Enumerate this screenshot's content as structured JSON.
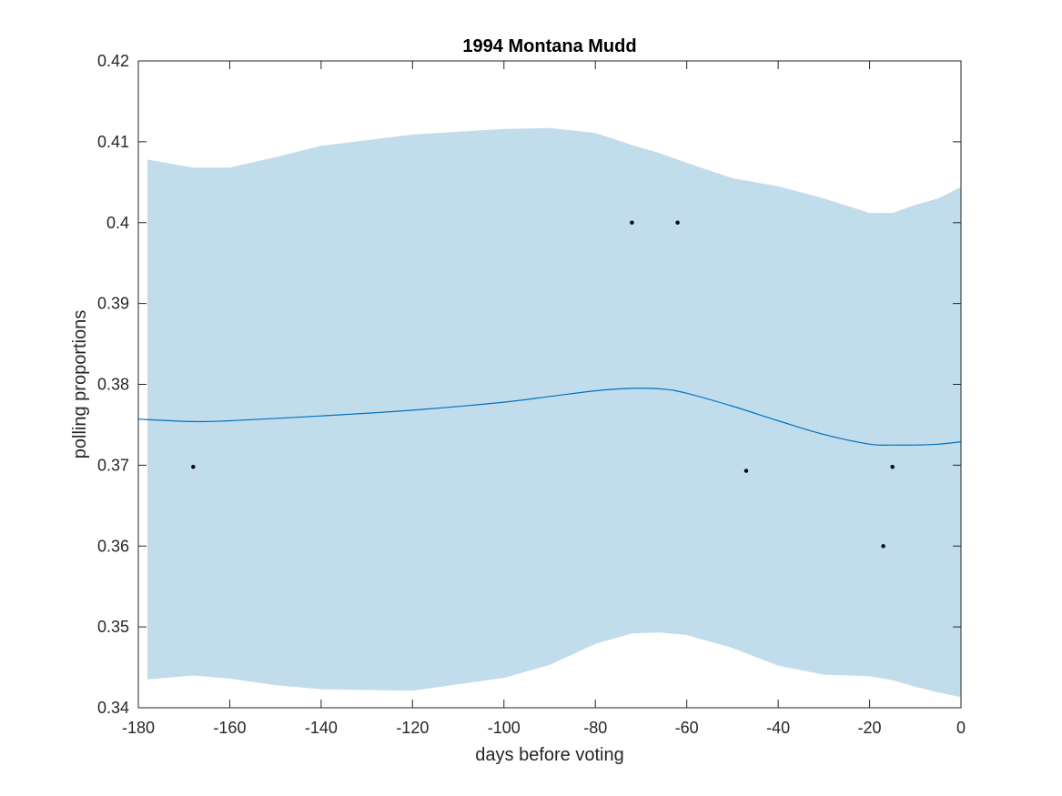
{
  "chart_data": {
    "type": "line",
    "title": "1994 Montana Mudd",
    "xlabel": "days before voting",
    "ylabel": "polling proportions",
    "xlim": [
      -180,
      0
    ],
    "ylim": [
      0.34,
      0.42
    ],
    "xticks": [
      -180,
      -160,
      -140,
      -120,
      -100,
      -80,
      -60,
      -40,
      -20,
      0
    ],
    "yticks": [
      0.34,
      0.35,
      0.36,
      0.37,
      0.38,
      0.39,
      0.4,
      0.41,
      0.42
    ],
    "xtick_labels": [
      "-180",
      "-160",
      "-140",
      "-120",
      "-100",
      "-80",
      "-60",
      "-40",
      "-20",
      "0"
    ],
    "ytick_labels": [
      "0.34",
      "0.35",
      "0.36",
      "0.37",
      "0.38",
      "0.39",
      "0.4",
      "0.41",
      "0.42"
    ],
    "grid": false,
    "colors": {
      "band": "#c1dceb",
      "line": "#0072bd",
      "points": "#000000",
      "axes": "#262626"
    },
    "band": {
      "x": [
        -178,
        -168,
        -160,
        -150,
        -140,
        -120,
        -100,
        -90,
        -80,
        -72,
        -66,
        -60,
        -50,
        -40,
        -30,
        -20,
        -15,
        -10,
        -5,
        0
      ],
      "upper": [
        0.4078,
        0.4068,
        0.4068,
        0.4081,
        0.4095,
        0.4109,
        0.4116,
        0.4117,
        0.4111,
        0.4096,
        0.4086,
        0.4074,
        0.4055,
        0.4045,
        0.403,
        0.4012,
        0.4012,
        0.4022,
        0.403,
        0.4044
      ],
      "lower": [
        0.3435,
        0.344,
        0.3436,
        0.3428,
        0.3423,
        0.3421,
        0.3437,
        0.3453,
        0.3479,
        0.3492,
        0.3493,
        0.349,
        0.3474,
        0.3452,
        0.3441,
        0.3439,
        0.3434,
        0.3426,
        0.3419,
        0.3413
      ]
    },
    "series": [
      {
        "x": [
          -180,
          -168,
          -160,
          -140,
          -120,
          -100,
          -90,
          -80,
          -72,
          -65,
          -60,
          -50,
          -40,
          -30,
          -20,
          -15,
          -10,
          -5,
          0
        ],
        "values": [
          0.3757,
          0.3754,
          0.3755,
          0.3761,
          0.3768,
          0.3778,
          0.3785,
          0.3792,
          0.3795,
          0.3794,
          0.3789,
          0.3773,
          0.3755,
          0.3738,
          0.3726,
          0.3725,
          0.3725,
          0.3726,
          0.3729
        ]
      }
    ],
    "points": [
      {
        "x": -168,
        "y": 0.3698
      },
      {
        "x": -72,
        "y": 0.4
      },
      {
        "x": -62,
        "y": 0.4
      },
      {
        "x": -47,
        "y": 0.3693
      },
      {
        "x": -17,
        "y": 0.36
      },
      {
        "x": -15,
        "y": 0.3698
      }
    ]
  }
}
